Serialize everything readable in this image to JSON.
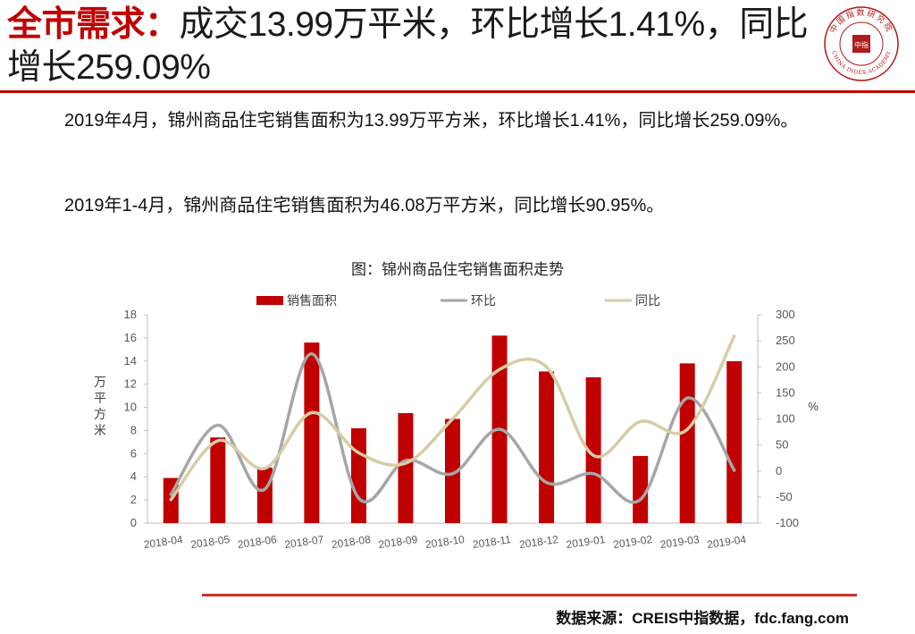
{
  "header": {
    "title_keyword": "全市需求：",
    "title_rest": "成交13.99万平米，环比增长1.41%，同比增长259.09%",
    "logo_text": "中国指数研究院",
    "logo_center": "中指",
    "logo_english": "CHINA INDEX ACADEMY"
  },
  "body": {
    "para1": "2019年4月，锦州商品住宅销售面积为13.99万平方米，环比增长1.41%，同比增长259.09%。",
    "para2": "2019年1-4月，锦州商品住宅销售面积为46.08万平方米，同比增长90.95%。"
  },
  "chart_data": {
    "type": "bar+line",
    "title": "图：锦州商品住宅销售面积走势",
    "categories": [
      "2018-04",
      "2018-05",
      "2018-06",
      "2018-07",
      "2018-08",
      "2018-09",
      "2018-10",
      "2018-11",
      "2018-12",
      "2019-01",
      "2019-02",
      "2019-03",
      "2019-04"
    ],
    "series": [
      {
        "name": "销售面积",
        "kind": "bar",
        "axis": "left",
        "color": "#c00000",
        "values": [
          3.9,
          7.4,
          4.8,
          15.6,
          8.2,
          9.5,
          9.0,
          16.2,
          13.1,
          12.6,
          5.8,
          13.8,
          13.99
        ]
      },
      {
        "name": "环比",
        "kind": "line",
        "axis": "right",
        "color": "#a6a6a6",
        "values": [
          -45,
          88,
          -35,
          225,
          -52,
          20,
          -5,
          80,
          -22,
          -5,
          -55,
          140,
          1.41
        ]
      },
      {
        "name": "同比",
        "kind": "line",
        "axis": "right",
        "color": "#d6cca6",
        "values": [
          -55,
          58,
          5,
          112,
          35,
          15,
          100,
          195,
          200,
          30,
          95,
          80,
          259.09
        ]
      }
    ],
    "left_axis": {
      "label": "万平方米",
      "min": 0,
      "max": 18,
      "step": 2
    },
    "right_axis": {
      "label": "%",
      "min": -100,
      "max": 300,
      "step": 50
    },
    "legend_position": "top",
    "grid": false
  },
  "footer": {
    "source": "数据来源：CREIS中指数据，fdc.fang.com"
  }
}
